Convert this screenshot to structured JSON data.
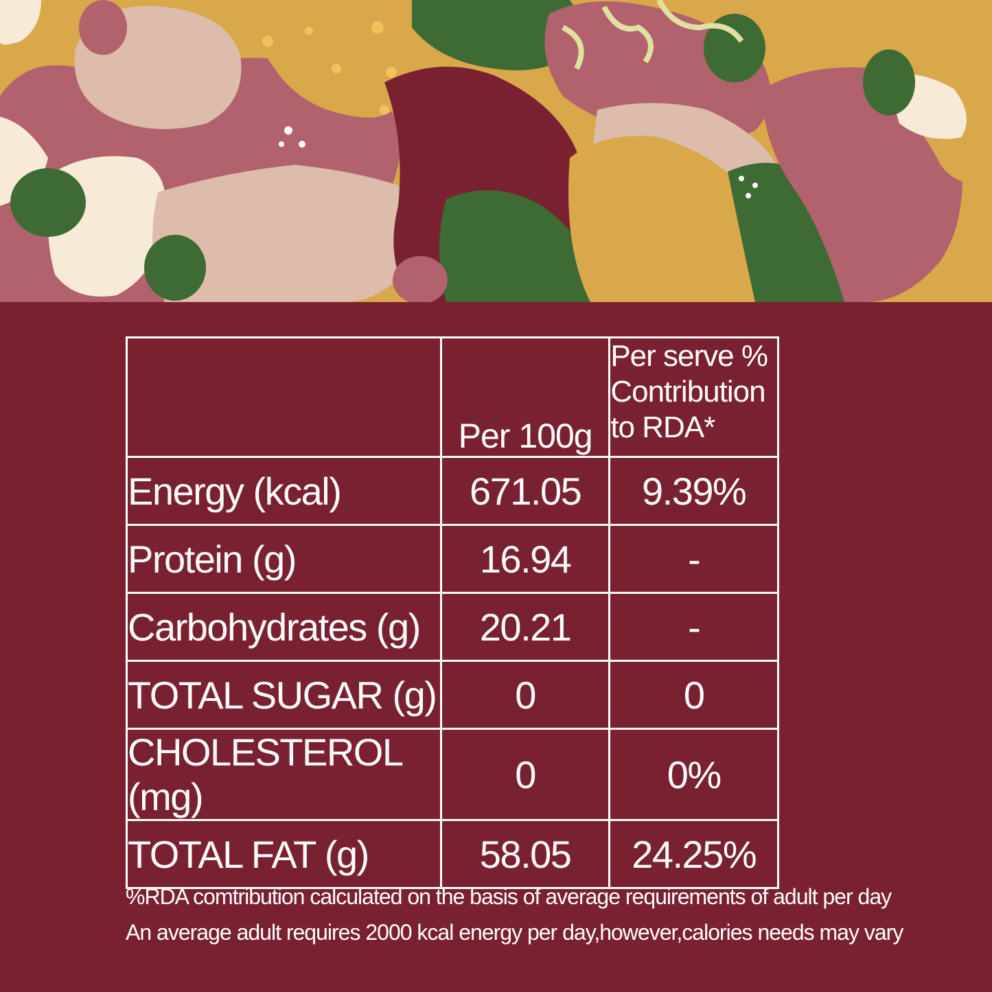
{
  "banner": {
    "description_icon": "abstract-pattern-icon",
    "colors": {
      "mustard": "#d9a84a",
      "rose": "#b1626d",
      "blush": "#ddbcab",
      "cream": "#f7ead6",
      "leaf_green": "#3d6b33",
      "maroon": "#7a2131",
      "pale_green": "#e0e0a0"
    }
  },
  "table": {
    "header": {
      "per_100g": "Per 100g",
      "rda_line1": "Per serve %",
      "rda_line2": "Contribution",
      "rda_line3": "to RDA*"
    },
    "rows": [
      {
        "nutrient": "Energy (kcal)",
        "per_100g": "671.05",
        "rda": "9.39%"
      },
      {
        "nutrient": "Protein (g)",
        "per_100g": "16.94",
        "rda": "-"
      },
      {
        "nutrient": "Carbohydrates (g)",
        "per_100g": "20.21",
        "rda": "-"
      },
      {
        "nutrient": "TOTAL SUGAR (g)",
        "per_100g": "0",
        "rda": "0"
      },
      {
        "nutrient": "CHOLESTEROL (mg)",
        "per_100g": "0",
        "rda": "0%"
      },
      {
        "nutrient": "TOTAL FAT (g)",
        "per_100g": "58.05",
        "rda": "24.25%"
      }
    ]
  },
  "footnotes": {
    "line1": "%RDA comtribution calculated on the basis of average requirements of adult per day",
    "line2": "An average adult requires 2000 kcal energy per day,however,calories needs may vary"
  },
  "colors": {
    "background": "#7a2131",
    "text": "#ffffff"
  }
}
